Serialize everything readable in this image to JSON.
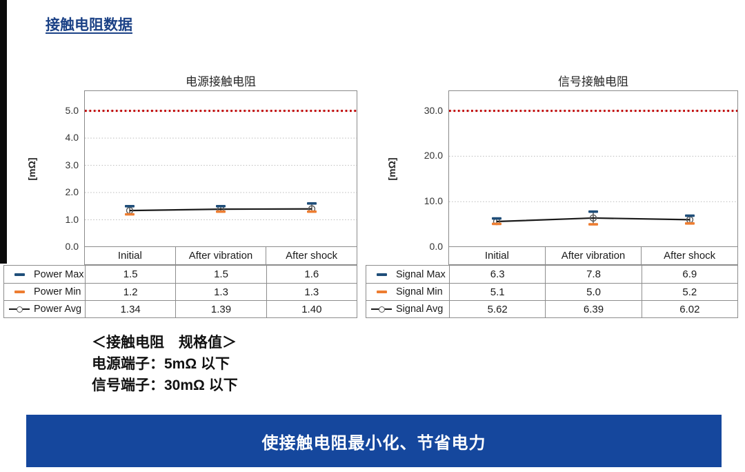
{
  "page_title": "接触电阻数据",
  "spec_note": {
    "heading": "＜接触电阻　规格值＞",
    "power": "电源端子：5mΩ 以下",
    "signal": "信号端子：30mΩ 以下"
  },
  "banner": {
    "text": "使接触电阻最小化、节省电力"
  },
  "colors": {
    "page_title": "#1b4186",
    "banner_bg": "#15479d",
    "spec_line": "#c00000",
    "max_marker": "#1f4e79",
    "min_marker": "#ed7d31",
    "avg_line": "#1a1a1a"
  },
  "chart_data": [
    {
      "type": "line",
      "title": "电源接触电阻",
      "ylabel": "[mΩ]",
      "categories": [
        "Initial",
        "After vibration",
        "After shock"
      ],
      "series": [
        {
          "name": "Power Max",
          "marker": "dash",
          "color": "#1f4e79",
          "decimals": 1,
          "values": [
            1.5,
            1.5,
            1.6
          ]
        },
        {
          "name": "Power Min",
          "marker": "dash",
          "color": "#ed7d31",
          "decimals": 1,
          "values": [
            1.2,
            1.3,
            1.3
          ]
        },
        {
          "name": "Power Avg",
          "marker": "line-circle",
          "color": "#1a1a1a",
          "decimals": 2,
          "values": [
            1.34,
            1.39,
            1.4
          ]
        }
      ],
      "yticks": [
        0,
        1,
        2,
        3,
        4,
        5
      ],
      "ylim": [
        0,
        5.75
      ],
      "spec_limit": 5.0,
      "grid": "dotted-horizontal",
      "legend_position": "table-left"
    },
    {
      "type": "line",
      "title": "信号接触电阻",
      "ylabel": "[mΩ]",
      "categories": [
        "Initial",
        "After vibration",
        "After shock"
      ],
      "series": [
        {
          "name": "Signal Max",
          "marker": "dash",
          "color": "#1f4e79",
          "decimals": 1,
          "values": [
            6.3,
            7.8,
            6.9
          ]
        },
        {
          "name": "Signal Min",
          "marker": "dash",
          "color": "#ed7d31",
          "decimals": 1,
          "values": [
            5.1,
            5.0,
            5.2
          ]
        },
        {
          "name": "Signal Avg",
          "marker": "line-circle",
          "color": "#1a1a1a",
          "decimals": 2,
          "values": [
            5.62,
            6.39,
            6.02
          ]
        }
      ],
      "yticks": [
        0,
        10,
        20,
        30
      ],
      "ylim": [
        0,
        34.5
      ],
      "spec_limit": 30.0,
      "grid": "dotted-horizontal",
      "legend_position": "table-left"
    }
  ]
}
